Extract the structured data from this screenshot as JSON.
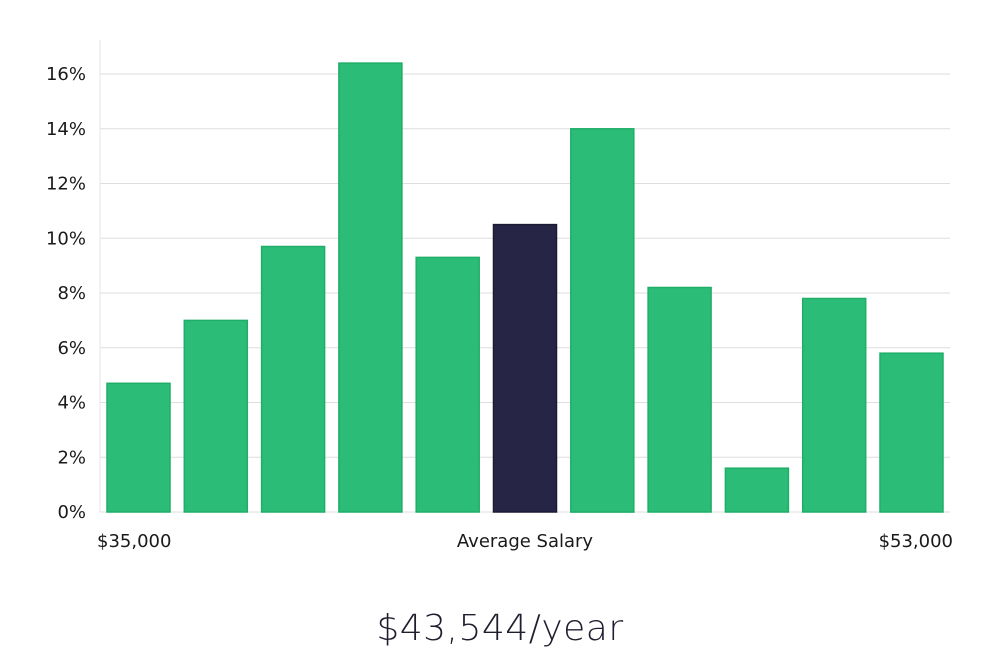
{
  "chart_data": {
    "type": "bar",
    "title": "",
    "xlabel": "Average Salary",
    "ylabel": "",
    "x_range_labels": {
      "min": "$35,000",
      "max": "$53,000"
    },
    "values": [
      4.7,
      7.0,
      9.7,
      16.4,
      9.3,
      10.5,
      14.0,
      8.2,
      1.6,
      7.8,
      5.8
    ],
    "highlight_index": 5,
    "ylim": [
      0,
      17
    ],
    "yticks": [
      0,
      2,
      4,
      6,
      8,
      10,
      12,
      14,
      16
    ],
    "ytick_labels": [
      "0%",
      "2%",
      "4%",
      "6%",
      "8%",
      "10%",
      "12%",
      "14%",
      "16%"
    ],
    "grid": true,
    "colors": {
      "bar": "#2bbd77",
      "bar_edge": "#1fae68",
      "highlight": "#272546",
      "grid": "#dedede",
      "axis": "#e6e6e6"
    }
  },
  "summary": {
    "salary_text": "$43,544/year"
  }
}
